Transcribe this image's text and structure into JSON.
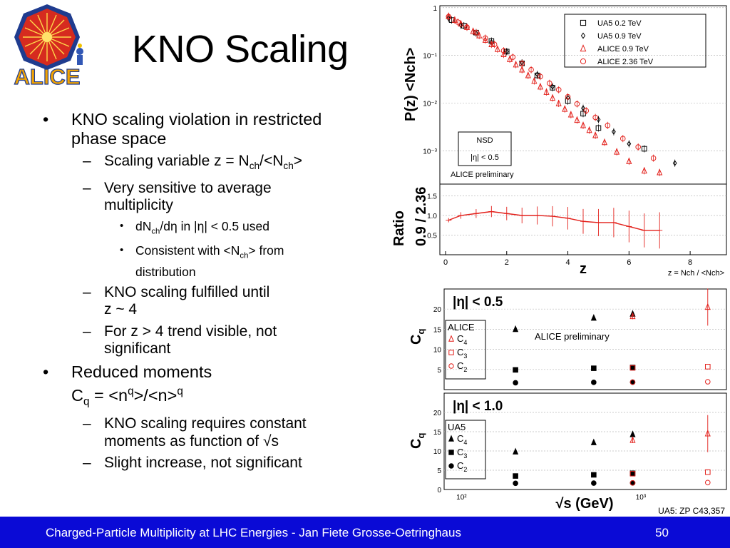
{
  "slide": {
    "title": "KNO Scaling",
    "logo_text": "ALICE",
    "footer_text": "Charged-Particle Multiplicity at LHC Energies - Jan Fiete Grosse-Oetringhaus",
    "page_number": "50"
  },
  "bullets": {
    "b1_line1": "KNO scaling violation in restricted",
    "b1_line2": "phase space",
    "s1_pre": "Scaling variable z = N",
    "s1_sub1": "ch",
    "s1_mid": "/<N",
    "s1_sub2": "ch",
    "s1_post": ">",
    "s2_line1": "Very sensitive to average",
    "s2_line2": "multiplicity",
    "t1_pre": "dN",
    "t1_sub": "ch",
    "t1_post": "/dη in |η| < 0.5 used",
    "t2_pre": "Consistent with <N",
    "t2_sub": "ch",
    "t2_post": "> from",
    "t2_line2": "distribution",
    "s3_line1": "KNO scaling fulfilled until",
    "s3_line2": "z ~ 4",
    "s4_line1": "For z > 4 trend visible, not",
    "s4_line2": "significant",
    "b2_line1": "Reduced moments",
    "b2_c": "C",
    "b2_csub": "q",
    "b2_mid": " = <n",
    "b2_sup1": "q",
    "b2_mid2": ">/<n>",
    "b2_sup2": "q",
    "s5_line1": "KNO scaling requires constant",
    "s5_line2": "moments as function of √s",
    "s6": "Slight increase, not significant"
  },
  "colors": {
    "alice_red": "#e3201b",
    "footer_blue": "#0a0ad6",
    "ua5_black": "#000000"
  },
  "chart_data": [
    {
      "type": "scatter",
      "ylabel": "P(z) <Nch>",
      "yscale": "log",
      "ylim": [
        0.0002,
        1.1
      ],
      "xlim": [
        0,
        9
      ],
      "y_ticks": [
        "10⁻³",
        "10⁻²",
        "10⁻¹",
        "1"
      ],
      "legend": [
        "UA5 0.2 TeV",
        "UA5 0.9 TeV",
        "ALICE 0.9 TeV",
        "ALICE 2.36 TeV"
      ],
      "legend_position": "top-right",
      "annotation_box": [
        "NSD",
        "|η| < 0.5"
      ],
      "preliminary": "ALICE preliminary",
      "series": [
        {
          "name": "UA5 0.2 TeV",
          "marker": "open-square",
          "color": "#000000",
          "x": [
            0.2,
            0.6,
            1.0,
            1.5,
            2.0,
            2.5,
            3.0,
            3.5,
            4.0,
            4.5,
            5.0,
            6.5
          ],
          "y": [
            0.55,
            0.42,
            0.3,
            0.2,
            0.12,
            0.068,
            0.038,
            0.021,
            0.011,
            0.006,
            0.003,
            0.0011
          ]
        },
        {
          "name": "UA5 0.9 TeV",
          "marker": "open-diamond",
          "color": "#000000",
          "x": [
            0.1,
            0.5,
            1.0,
            1.5,
            2.0,
            2.5,
            3.0,
            3.5,
            4.0,
            4.5,
            5.0,
            5.5,
            6.0,
            7.5
          ],
          "y": [
            0.6,
            0.43,
            0.29,
            0.19,
            0.12,
            0.07,
            0.04,
            0.022,
            0.013,
            0.0078,
            0.0045,
            0.0025,
            0.0014,
            0.00055
          ]
        },
        {
          "name": "ALICE 0.9 TeV",
          "marker": "open-triangle",
          "color": "#e3201b",
          "x": [
            0.1,
            0.3,
            0.5,
            0.7,
            0.9,
            1.1,
            1.3,
            1.5,
            1.7,
            1.9,
            2.1,
            2.3,
            2.5,
            2.7,
            2.9,
            3.1,
            3.3,
            3.5,
            3.7,
            3.9,
            4.1,
            4.3,
            4.5,
            4.7,
            4.9,
            5.2,
            5.6,
            6.0,
            6.5,
            7.0
          ],
          "y": [
            0.66,
            0.55,
            0.46,
            0.39,
            0.32,
            0.26,
            0.21,
            0.17,
            0.135,
            0.105,
            0.083,
            0.064,
            0.05,
            0.038,
            0.029,
            0.022,
            0.017,
            0.0128,
            0.0098,
            0.0075,
            0.0057,
            0.0044,
            0.0034,
            0.0027,
            0.0021,
            0.0015,
            0.00095,
            0.0006,
            0.00038,
            0.00035
          ]
        },
        {
          "name": "ALICE 2.36 TeV",
          "marker": "open-circle",
          "color": "#e3201b",
          "x": [
            0.1,
            0.4,
            0.7,
            1.0,
            1.3,
            1.6,
            1.9,
            2.2,
            2.5,
            2.8,
            3.1,
            3.4,
            3.7,
            4.0,
            4.3,
            4.6,
            4.9,
            5.3,
            5.8,
            6.3,
            6.8
          ],
          "y": [
            0.65,
            0.5,
            0.39,
            0.3,
            0.23,
            0.17,
            0.125,
            0.092,
            0.068,
            0.05,
            0.036,
            0.026,
            0.019,
            0.0135,
            0.0096,
            0.0069,
            0.005,
            0.0034,
            0.0018,
            0.0012,
            0.0007
          ]
        }
      ]
    },
    {
      "type": "line",
      "ylabel_line1": "Ratio",
      "ylabel_line2": "0.9 / 2.36",
      "xlabel_big": "z",
      "xlabel": "z = Nch / <Nch>",
      "xlim": [
        0,
        9
      ],
      "ylim": [
        0,
        1.8
      ],
      "x_ticks": [
        "0",
        "2",
        "4",
        "6",
        "8"
      ],
      "y_ticks": [
        "0.5",
        "1.0",
        "1.5"
      ],
      "series": [
        {
          "name": "",
          "color": "#e3201b",
          "x": [
            0.1,
            0.5,
            1.0,
            1.5,
            2.0,
            2.5,
            3.0,
            3.5,
            4.0,
            4.5,
            5.0,
            5.5,
            6.0,
            6.5,
            7.0
          ],
          "y": [
            0.88,
            1.0,
            1.05,
            1.1,
            1.05,
            1.0,
            1.0,
            0.98,
            0.93,
            0.85,
            0.82,
            0.82,
            0.72,
            0.62,
            0.62
          ]
        }
      ]
    },
    {
      "type": "scatter",
      "title": "|η| < 0.5",
      "ylabel": "C",
      "ylabel_sub": "q",
      "ylim": [
        0,
        25
      ],
      "xscale": "log",
      "y_ticks": [
        "5",
        "10",
        "15",
        "20"
      ],
      "legend_title": "ALICE",
      "legend": [
        "C4",
        "C3",
        "C2"
      ],
      "preliminary": "ALICE preliminary",
      "series": [
        {
          "name": "C4",
          "experiment": "UA5",
          "marker": "filled-triangle",
          "color": "#000000",
          "x": [
            200,
            546,
            900
          ],
          "y": [
            15.0,
            17.8,
            18.8
          ]
        },
        {
          "name": "C3",
          "experiment": "UA5",
          "marker": "filled-square",
          "color": "#000000",
          "x": [
            200,
            546,
            900
          ],
          "y": [
            4.9,
            5.3,
            5.5
          ]
        },
        {
          "name": "C2",
          "experiment": "UA5",
          "marker": "filled-circle",
          "color": "#000000",
          "x": [
            200,
            546,
            900
          ],
          "y": [
            1.7,
            1.8,
            1.85
          ]
        },
        {
          "name": "C4",
          "experiment": "ALICE",
          "marker": "open-triangle",
          "color": "#e3201b",
          "x": [
            900,
            2360
          ],
          "y": [
            18.2,
            20.5
          ]
        },
        {
          "name": "C3",
          "experiment": "ALICE",
          "marker": "open-square",
          "color": "#e3201b",
          "x": [
            900,
            2360
          ],
          "y": [
            5.4,
            5.7
          ]
        },
        {
          "name": "C2",
          "experiment": "ALICE",
          "marker": "open-circle",
          "color": "#e3201b",
          "x": [
            900,
            2360
          ],
          "y": [
            1.85,
            1.95
          ]
        }
      ]
    },
    {
      "type": "scatter",
      "title": "|η| < 1.0",
      "ylabel": "C",
      "ylabel_sub": "q",
      "xlabel": "√s (GeV)",
      "xscale": "log",
      "ylim": [
        0,
        25
      ],
      "y_ticks": [
        "0",
        "5",
        "10",
        "15",
        "20"
      ],
      "x_ticks": [
        "10²",
        "10³"
      ],
      "legend_title": "UA5",
      "legend": [
        "C4",
        "C3",
        "C2"
      ],
      "reference": "UA5: ZP C43,357",
      "series": [
        {
          "name": "C4",
          "experiment": "UA5",
          "marker": "filled-triangle",
          "color": "#000000",
          "x": [
            200,
            546,
            900
          ],
          "y": [
            9.8,
            12.2,
            14.3
          ]
        },
        {
          "name": "C3",
          "experiment": "UA5",
          "marker": "filled-square",
          "color": "#000000",
          "x": [
            200,
            546,
            900
          ],
          "y": [
            3.5,
            3.8,
            4.2
          ]
        },
        {
          "name": "C2",
          "experiment": "UA5",
          "marker": "filled-circle",
          "color": "#000000",
          "x": [
            200,
            546,
            900
          ],
          "y": [
            1.6,
            1.65,
            1.7
          ]
        },
        {
          "name": "C4",
          "experiment": "ALICE",
          "marker": "open-triangle",
          "color": "#e3201b",
          "x": [
            900,
            2360
          ],
          "y": [
            12.8,
            14.5
          ]
        },
        {
          "name": "C3",
          "experiment": "ALICE",
          "marker": "open-square",
          "color": "#e3201b",
          "x": [
            900,
            2360
          ],
          "y": [
            4.1,
            4.5
          ]
        },
        {
          "name": "C2",
          "experiment": "ALICE",
          "marker": "open-circle",
          "color": "#e3201b",
          "x": [
            900,
            2360
          ],
          "y": [
            1.7,
            1.8
          ]
        }
      ]
    }
  ]
}
